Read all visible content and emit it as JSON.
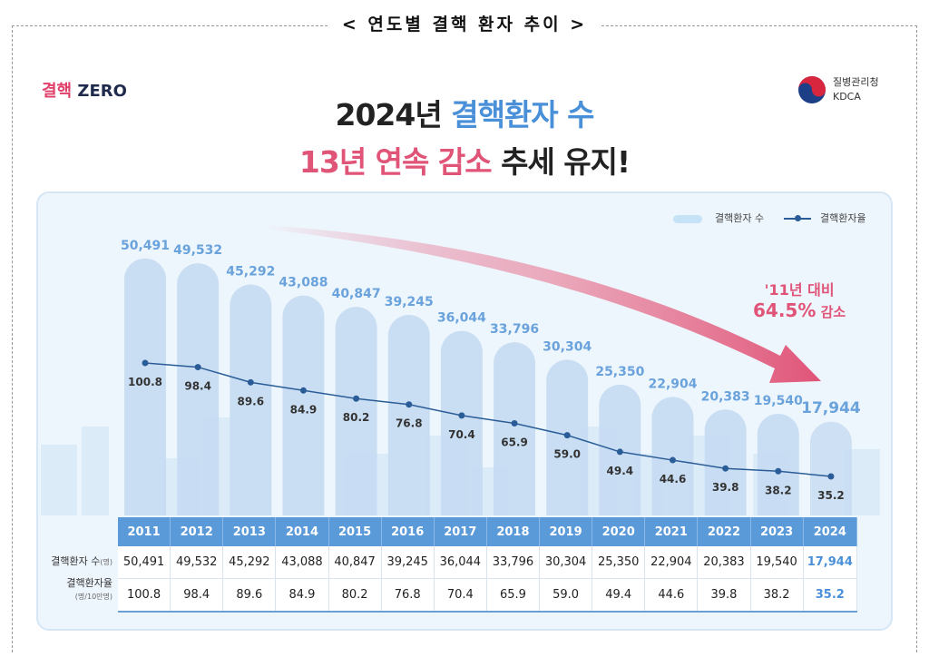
{
  "frame_title": "< 연도별 결핵 환자 추이 >",
  "logo_left": {
    "part1": "결핵",
    "part2": "ZERO"
  },
  "logo_right": {
    "line1": "질병관리청",
    "line2": "KDCA"
  },
  "headline": {
    "line1_dark": "2024년 ",
    "line1_blue": "결핵환자 수",
    "line2_pink": "13년 연속 감소",
    "line2_dark": " 추세 유지!"
  },
  "callout": {
    "line1": "'11년 대비",
    "line2_pct": "64.5%",
    "line2_text": " 감소"
  },
  "colors": {
    "bar": "#c5dcf2",
    "line": "#2a5d97",
    "accent_pink": "#e05478",
    "accent_blue": "#4a90d9",
    "table_header": "#5b9ad8"
  },
  "table": {
    "row1_label": "결핵환자 수",
    "row1_unit": "(명)",
    "row2_label": "결핵환자율",
    "row2_unit": "(명/10만명)"
  },
  "chart_data": {
    "type": "bar+line",
    "categories": [
      "2011",
      "2012",
      "2013",
      "2014",
      "2015",
      "2016",
      "2017",
      "2018",
      "2019",
      "2020",
      "2021",
      "2022",
      "2023",
      "2024"
    ],
    "series": [
      {
        "name": "결핵환자 수",
        "type": "bar",
        "values": [
          50491,
          49532,
          45292,
          43088,
          40847,
          39245,
          36044,
          33796,
          30304,
          25350,
          22904,
          20383,
          19540,
          17944
        ],
        "labels": [
          "50,491",
          "49,532",
          "45,292",
          "43,088",
          "40,847",
          "39,245",
          "36,044",
          "33,796",
          "30,304",
          "25,350",
          "22,904",
          "20,383",
          "19,540",
          "17,944"
        ]
      },
      {
        "name": "결핵환자율",
        "type": "line",
        "values": [
          100.8,
          98.4,
          89.6,
          84.9,
          80.2,
          76.8,
          70.4,
          65.9,
          59.0,
          49.4,
          44.6,
          39.8,
          38.2,
          35.2
        ],
        "labels": [
          "100.8",
          "98.4",
          "89.6",
          "84.9",
          "80.2",
          "76.8",
          "70.4",
          "65.9",
          "59.0",
          "49.4",
          "44.6",
          "39.8",
          "38.2",
          "35.2"
        ]
      }
    ],
    "legend_position": "top-right",
    "grid": false
  }
}
